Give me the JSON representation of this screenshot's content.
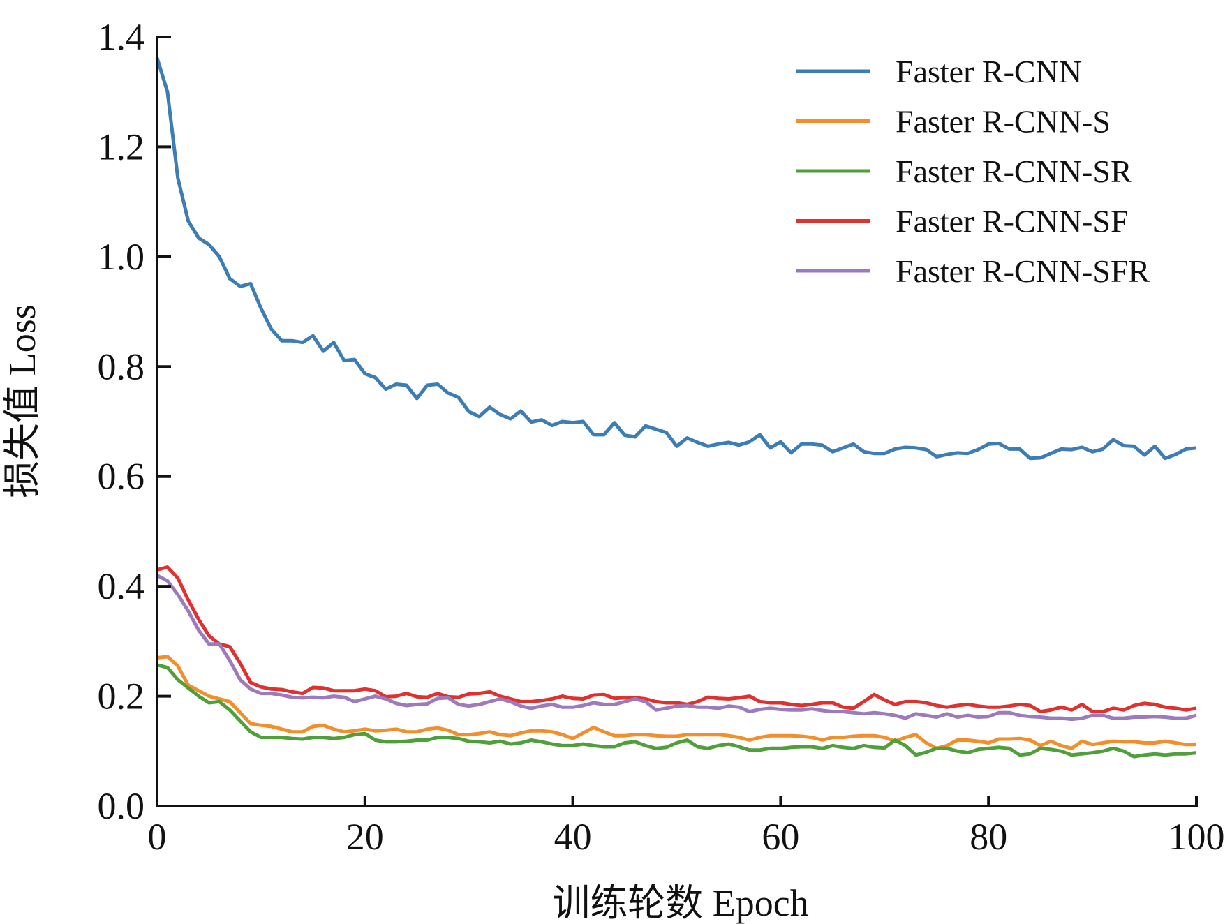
{
  "chart_data": {
    "type": "line",
    "title": "",
    "xlabel": "训练轮数 Epoch",
    "ylabel": "损失值 Loss",
    "xlim": [
      0,
      100
    ],
    "ylim": [
      0,
      1.4
    ],
    "xticks": [
      "0",
      "20",
      "40",
      "60",
      "80",
      "100"
    ],
    "yticks": [
      "0.0",
      "0.2",
      "0.4",
      "0.6",
      "0.8",
      "1.0",
      "1.2",
      "1.4"
    ],
    "grid": false,
    "legend_position": "top-right",
    "x_start": 0,
    "x_step": 1,
    "series": [
      {
        "name": "Faster R-CNN",
        "color": "#3b7db4",
        "values": [
          1.362,
          1.3,
          1.143,
          1.065,
          1.034,
          1.022,
          1.0,
          0.96,
          0.946,
          0.951,
          0.906,
          0.868,
          0.847,
          0.847,
          0.844,
          0.856,
          0.828,
          0.844,
          0.811,
          0.813,
          0.787,
          0.78,
          0.759,
          0.768,
          0.766,
          0.742,
          0.766,
          0.768,
          0.752,
          0.744,
          0.718,
          0.709,
          0.726,
          0.713,
          0.705,
          0.719,
          0.699,
          0.703,
          0.693,
          0.7,
          0.698,
          0.7,
          0.676,
          0.676,
          0.698,
          0.675,
          0.672,
          0.692,
          0.686,
          0.68,
          0.655,
          0.67,
          0.662,
          0.655,
          0.659,
          0.662,
          0.657,
          0.663,
          0.676,
          0.652,
          0.663,
          0.643,
          0.659,
          0.659,
          0.657,
          0.645,
          0.652,
          0.659,
          0.645,
          0.642,
          0.642,
          0.65,
          0.653,
          0.652,
          0.649,
          0.636,
          0.64,
          0.643,
          0.642,
          0.649,
          0.659,
          0.66,
          0.65,
          0.65,
          0.633,
          0.634,
          0.642,
          0.65,
          0.649,
          0.653,
          0.645,
          0.65,
          0.667,
          0.656,
          0.655,
          0.639,
          0.655,
          0.633,
          0.64,
          0.65,
          0.652
        ]
      },
      {
        "name": "Faster R-CNN-S",
        "color": "#f28e2b",
        "values": [
          0.27,
          0.272,
          0.255,
          0.22,
          0.21,
          0.2,
          0.195,
          0.19,
          0.17,
          0.15,
          0.147,
          0.145,
          0.14,
          0.135,
          0.135,
          0.145,
          0.147,
          0.14,
          0.135,
          0.137,
          0.14,
          0.137,
          0.138,
          0.14,
          0.135,
          0.135,
          0.14,
          0.142,
          0.138,
          0.13,
          0.13,
          0.132,
          0.135,
          0.13,
          0.128,
          0.133,
          0.137,
          0.137,
          0.135,
          0.13,
          0.123,
          0.133,
          0.143,
          0.135,
          0.128,
          0.128,
          0.13,
          0.13,
          0.128,
          0.127,
          0.127,
          0.13,
          0.13,
          0.13,
          0.13,
          0.128,
          0.125,
          0.12,
          0.125,
          0.128,
          0.128,
          0.128,
          0.127,
          0.125,
          0.12,
          0.125,
          0.125,
          0.127,
          0.128,
          0.128,
          0.125,
          0.118,
          0.125,
          0.13,
          0.115,
          0.105,
          0.11,
          0.12,
          0.12,
          0.118,
          0.115,
          0.122,
          0.122,
          0.123,
          0.12,
          0.11,
          0.118,
          0.11,
          0.105,
          0.118,
          0.112,
          0.115,
          0.118,
          0.117,
          0.117,
          0.115,
          0.115,
          0.118,
          0.115,
          0.112,
          0.112
        ]
      },
      {
        "name": "Faster R-CNN-SR",
        "color": "#4f9f3a",
        "values": [
          0.257,
          0.252,
          0.23,
          0.215,
          0.2,
          0.188,
          0.19,
          0.175,
          0.155,
          0.135,
          0.125,
          0.125,
          0.125,
          0.123,
          0.122,
          0.125,
          0.125,
          0.123,
          0.125,
          0.13,
          0.132,
          0.12,
          0.117,
          0.117,
          0.118,
          0.12,
          0.12,
          0.125,
          0.125,
          0.123,
          0.118,
          0.117,
          0.115,
          0.118,
          0.113,
          0.115,
          0.12,
          0.117,
          0.113,
          0.11,
          0.11,
          0.113,
          0.11,
          0.108,
          0.108,
          0.115,
          0.117,
          0.11,
          0.105,
          0.107,
          0.115,
          0.12,
          0.108,
          0.105,
          0.11,
          0.113,
          0.108,
          0.102,
          0.102,
          0.105,
          0.105,
          0.107,
          0.108,
          0.108,
          0.105,
          0.11,
          0.107,
          0.105,
          0.11,
          0.107,
          0.106,
          0.12,
          0.11,
          0.093,
          0.098,
          0.105,
          0.105,
          0.1,
          0.097,
          0.103,
          0.105,
          0.107,
          0.105,
          0.093,
          0.095,
          0.105,
          0.103,
          0.1,
          0.093,
          0.095,
          0.097,
          0.1,
          0.105,
          0.1,
          0.09,
          0.093,
          0.095,
          0.093,
          0.095,
          0.095,
          0.097
        ]
      },
      {
        "name": "Faster R-CNN-SF",
        "color": "#e0312f",
        "values": [
          0.43,
          0.435,
          0.415,
          0.375,
          0.34,
          0.31,
          0.295,
          0.29,
          0.26,
          0.225,
          0.217,
          0.213,
          0.212,
          0.208,
          0.205,
          0.216,
          0.215,
          0.21,
          0.21,
          0.21,
          0.213,
          0.21,
          0.199,
          0.2,
          0.205,
          0.199,
          0.198,
          0.205,
          0.199,
          0.198,
          0.204,
          0.205,
          0.208,
          0.2,
          0.195,
          0.19,
          0.19,
          0.192,
          0.195,
          0.2,
          0.196,
          0.195,
          0.202,
          0.203,
          0.196,
          0.197,
          0.197,
          0.195,
          0.19,
          0.188,
          0.188,
          0.185,
          0.19,
          0.198,
          0.196,
          0.195,
          0.197,
          0.2,
          0.19,
          0.188,
          0.188,
          0.185,
          0.183,
          0.185,
          0.188,
          0.188,
          0.18,
          0.178,
          0.19,
          0.203,
          0.193,
          0.185,
          0.19,
          0.19,
          0.188,
          0.183,
          0.18,
          0.183,
          0.185,
          0.182,
          0.18,
          0.18,
          0.182,
          0.185,
          0.183,
          0.172,
          0.175,
          0.18,
          0.175,
          0.185,
          0.172,
          0.172,
          0.178,
          0.175,
          0.183,
          0.187,
          0.185,
          0.18,
          0.178,
          0.175,
          0.178
        ]
      },
      {
        "name": "Faster R-CNN-SFR",
        "color": "#9b7bbd",
        "values": [
          0.42,
          0.41,
          0.385,
          0.355,
          0.32,
          0.295,
          0.295,
          0.265,
          0.23,
          0.213,
          0.205,
          0.205,
          0.202,
          0.198,
          0.197,
          0.198,
          0.197,
          0.2,
          0.198,
          0.19,
          0.195,
          0.2,
          0.195,
          0.187,
          0.183,
          0.185,
          0.186,
          0.196,
          0.197,
          0.185,
          0.182,
          0.185,
          0.19,
          0.195,
          0.19,
          0.182,
          0.178,
          0.182,
          0.185,
          0.18,
          0.18,
          0.183,
          0.188,
          0.185,
          0.185,
          0.19,
          0.195,
          0.19,
          0.175,
          0.178,
          0.182,
          0.183,
          0.18,
          0.18,
          0.178,
          0.182,
          0.18,
          0.172,
          0.176,
          0.178,
          0.176,
          0.175,
          0.175,
          0.177,
          0.174,
          0.172,
          0.172,
          0.17,
          0.168,
          0.17,
          0.168,
          0.165,
          0.16,
          0.168,
          0.165,
          0.162,
          0.168,
          0.162,
          0.165,
          0.162,
          0.163,
          0.17,
          0.17,
          0.165,
          0.163,
          0.162,
          0.16,
          0.16,
          0.158,
          0.16,
          0.165,
          0.165,
          0.16,
          0.16,
          0.162,
          0.162,
          0.163,
          0.162,
          0.16,
          0.16,
          0.165
        ]
      }
    ]
  }
}
